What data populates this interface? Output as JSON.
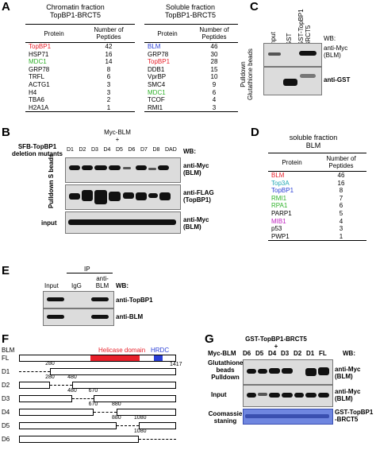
{
  "panelA": {
    "label": "A",
    "chromatin": {
      "title1": "Chromatin  fraction",
      "title2": "TopBP1-BRCT5",
      "head_protein": "Protein",
      "head_peptides": "Number of Peptides",
      "rows": [
        {
          "protein": "TopBP1",
          "n": "42",
          "color": "#e8202a"
        },
        {
          "protein": "HSP71",
          "n": "16",
          "color": "#000000"
        },
        {
          "protein": "MDC1",
          "n": "14",
          "color": "#2fb22a"
        },
        {
          "protein": "GRP78",
          "n": "8",
          "color": "#000000"
        },
        {
          "protein": "TRFL",
          "n": "6",
          "color": "#000000"
        },
        {
          "protein": "ACTG1",
          "n": "3",
          "color": "#000000"
        },
        {
          "protein": "H4",
          "n": "3",
          "color": "#000000"
        },
        {
          "protein": "TBA6",
          "n": "2",
          "color": "#000000"
        },
        {
          "protein": "H2A1A",
          "n": "1",
          "color": "#000000"
        }
      ]
    },
    "soluble": {
      "title1": "Soluble fraction",
      "title2": "TopBP1-BRCT5",
      "head_protein": "Protein",
      "head_peptides": "Number of Peptides",
      "rows": [
        {
          "protein": "BLM",
          "n": "46",
          "color": "#2a3fd6"
        },
        {
          "protein": "GRP78",
          "n": "30",
          "color": "#000000"
        },
        {
          "protein": "TopBP1",
          "n": "28",
          "color": "#e8202a"
        },
        {
          "protein": "DDB1",
          "n": "15",
          "color": "#000000"
        },
        {
          "protein": "VprBP",
          "n": "10",
          "color": "#000000"
        },
        {
          "protein": "SMC4",
          "n": "9",
          "color": "#000000"
        },
        {
          "protein": "MDC1",
          "n": "6",
          "color": "#2fb22a"
        },
        {
          "protein": "TCOF",
          "n": "4",
          "color": "#000000"
        },
        {
          "protein": "RMI1",
          "n": "3",
          "color": "#000000"
        }
      ]
    }
  },
  "panelB": {
    "label": "B",
    "title_line1": "Myc-BLM",
    "title_plus": "+",
    "left_title1": "SFB-TopBP1",
    "left_title2": "deletion mutants",
    "lanes": [
      "D1",
      "D2",
      "D3",
      "D4",
      "D5",
      "D6",
      "D7",
      "D8",
      "DAD"
    ],
    "wb": "WB:",
    "side_label": "Pulldown S beads",
    "rows": [
      {
        "l1": "anti-Myc",
        "l2": "(BLM)"
      },
      {
        "l1": "anti-FLAG",
        "l2": "(TopBP1)"
      },
      {
        "l1": "anti-Myc",
        "l2": "(BLM)",
        "left": "input"
      }
    ]
  },
  "panelC": {
    "label": "C",
    "lanes": [
      "Input",
      "GST",
      "GST-TopBP1 BRCT5"
    ],
    "wb": "WB:",
    "side_label1": "Pulldown",
    "side_label2": "Glutathione beads",
    "rows": [
      {
        "l1": "anti-Myc",
        "l2": "(BLM)"
      },
      {
        "l1": "anti-GST",
        "l2": ""
      }
    ]
  },
  "panelD": {
    "label": "D",
    "title1": "soluble fraction",
    "title2": "BLM",
    "head_protein": "Protein",
    "head_peptides": "Number of Peptides",
    "rows": [
      {
        "protein": "BLM",
        "n": "46",
        "color": "#e8202a"
      },
      {
        "protein": "Top3A",
        "n": "16",
        "color": "#22a8b4"
      },
      {
        "protein": "TopBP1",
        "n": "8",
        "color": "#2a3fd6"
      },
      {
        "protein": "RMI1",
        "n": "7",
        "color": "#2fb22a"
      },
      {
        "protein": "RPA1",
        "n": "6",
        "color": "#2fb22a"
      },
      {
        "protein": "PARP1",
        "n": "5",
        "color": "#000000"
      },
      {
        "protein": "MIB1",
        "n": "4",
        "color": "#c021c0"
      },
      {
        "protein": "p53",
        "n": "3",
        "color": "#000000"
      },
      {
        "protein": "PWP1",
        "n": "1",
        "color": "#000000"
      }
    ]
  },
  "panelE": {
    "label": "E",
    "ip": "IP",
    "lanes": [
      "Input",
      "IgG",
      "anti-BLM"
    ],
    "wb": "WB:",
    "rows": [
      "anti-TopBP1",
      "anti-BLM"
    ]
  },
  "panelF": {
    "label": "F",
    "blm": "BLM",
    "helicase": "Helicase domain",
    "hrdc": "HRDC",
    "helicase_color": "#e8202a",
    "hrdc_color": "#2a3fd6",
    "rows": [
      {
        "name": "FL",
        "start": "",
        "end": "1417"
      },
      {
        "name": "D1",
        "start": "280",
        "end": ""
      },
      {
        "name": "D2",
        "start": "280",
        "end": "480"
      },
      {
        "name": "D3",
        "start": "480",
        "end": "670"
      },
      {
        "name": "D4",
        "start": "670",
        "end": "880"
      },
      {
        "name": "D5",
        "start": "880",
        "end": "1080"
      },
      {
        "name": "D6",
        "start": "1080",
        "end": ""
      }
    ],
    "fl_end": "1417"
  },
  "panelG": {
    "label": "G",
    "title1": "GST-TopBP1-BRCT5",
    "title_plus": "+",
    "left_title": "Myc-BLM",
    "lanes": [
      "D6",
      "D5",
      "D4",
      "D3",
      "D2",
      "D1",
      "FL"
    ],
    "wb": "WB:",
    "side_label1": "Glutathione",
    "side_label2": "beads",
    "side_label3": "Pulldown",
    "rows": [
      {
        "left": "",
        "l1": "anti-Myc",
        "l2": "(BLM)"
      },
      {
        "left": "Input",
        "l1": "anti-Myc",
        "l2": "(BLM)"
      },
      {
        "left": "Coomassie staning",
        "l1": "GST-TopBP1",
        "l2": "-BRCT5"
      }
    ]
  }
}
